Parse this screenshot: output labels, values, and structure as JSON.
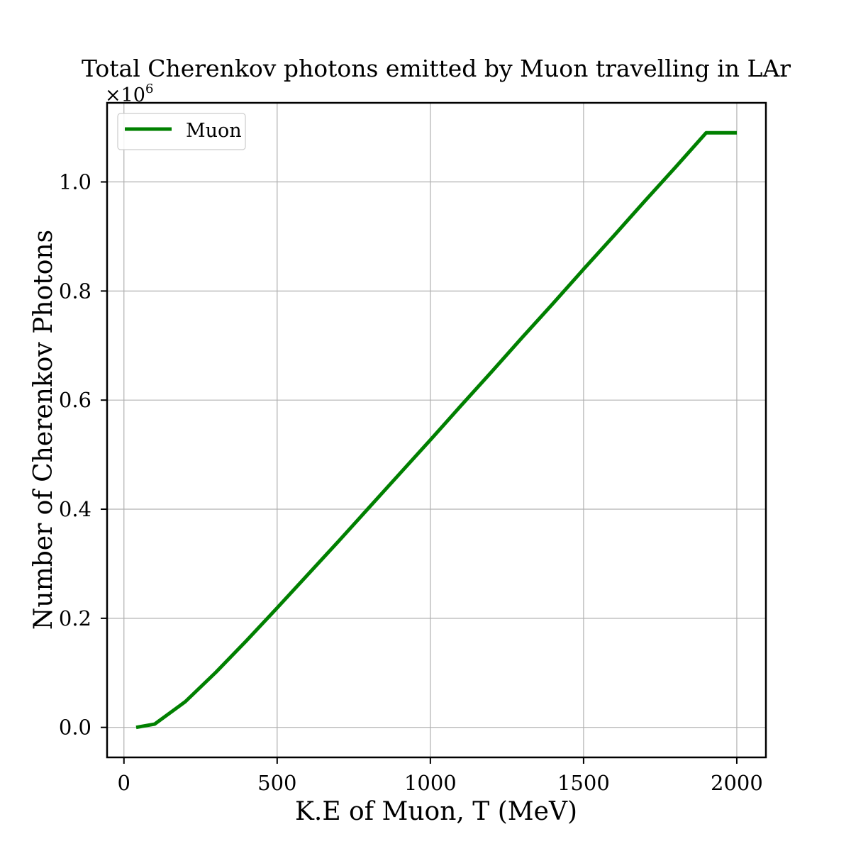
{
  "chart_data": {
    "type": "line",
    "title": "Total Cherenkov photons emitted by Muon travelling in LAr",
    "xlabel": "K.E of Muon, T (MeV)",
    "ylabel": "Number of Cherenkov Photons",
    "y_multiplier": "×10",
    "y_multiplier_exp": "6",
    "xlim": [
      -55,
      2095
    ],
    "ylim": [
      -0.055,
      1.145
    ],
    "xticks": [
      0,
      500,
      1000,
      1500,
      2000
    ],
    "xtick_labels": [
      "0",
      "500",
      "1000",
      "1500",
      "2000"
    ],
    "yticks": [
      0.0,
      0.2,
      0.4,
      0.6,
      0.8,
      1.0
    ],
    "ytick_labels": [
      "0.0",
      "0.2",
      "0.4",
      "0.6",
      "0.8",
      "1.0"
    ],
    "grid": true,
    "legend_position": "top-left",
    "series": [
      {
        "name": "Muon",
        "color": "#008000",
        "x": [
          40,
          100,
          200,
          300,
          400,
          500,
          600,
          700,
          800,
          900,
          1000,
          1100,
          1200,
          1300,
          1400,
          1500,
          1600,
          1700,
          1800,
          1900,
          2000
        ],
        "y": [
          0.0,
          0.006,
          0.047,
          0.101,
          0.159,
          0.219,
          0.28,
          0.341,
          0.403,
          0.465,
          0.527,
          0.59,
          0.652,
          0.715,
          0.777,
          0.84,
          0.902,
          0.965,
          1.027,
          1.09,
          1.09
        ]
      }
    ]
  }
}
